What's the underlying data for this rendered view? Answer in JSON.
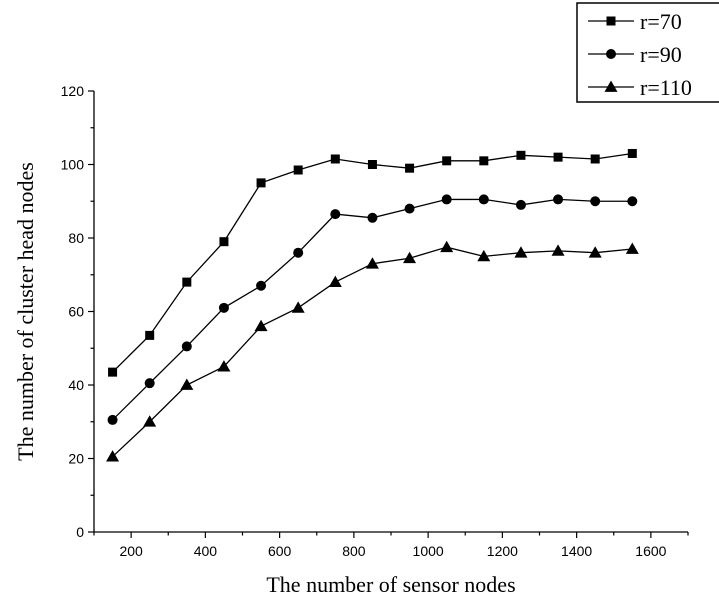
{
  "chart_data": {
    "type": "line",
    "xlabel": "The number of sensor nodes",
    "ylabel": "The number of cluster head nodes",
    "xlim": [
      100,
      1700
    ],
    "ylim": [
      0,
      120
    ],
    "xticks": [
      200,
      400,
      600,
      800,
      1000,
      1200,
      1400,
      1600
    ],
    "yticks": [
      0,
      20,
      40,
      60,
      80,
      100,
      120
    ],
    "x": [
      150,
      250,
      350,
      450,
      550,
      650,
      750,
      850,
      950,
      1050,
      1150,
      1250,
      1350,
      1450,
      1550
    ],
    "grid": false,
    "legend_position": "top-right",
    "series": [
      {
        "name": "r=70",
        "marker": "square",
        "values": [
          43.5,
          53.5,
          68,
          79,
          95,
          98.5,
          101.5,
          100,
          99,
          101,
          101,
          102.5,
          102,
          101.5,
          103
        ]
      },
      {
        "name": "r=90",
        "marker": "circle",
        "values": [
          30.5,
          40.5,
          50.5,
          61,
          67,
          76,
          86.5,
          85.5,
          88,
          90.5,
          90.5,
          89,
          90.5,
          90,
          90
        ]
      },
      {
        "name": "r=110",
        "marker": "triangle",
        "values": [
          20.5,
          30,
          40,
          45,
          56,
          61,
          68,
          73,
          74.5,
          77.5,
          75,
          76,
          76.5,
          76,
          77
        ]
      }
    ],
    "colors": {
      "line": "#000000",
      "marker": "#000000"
    }
  }
}
